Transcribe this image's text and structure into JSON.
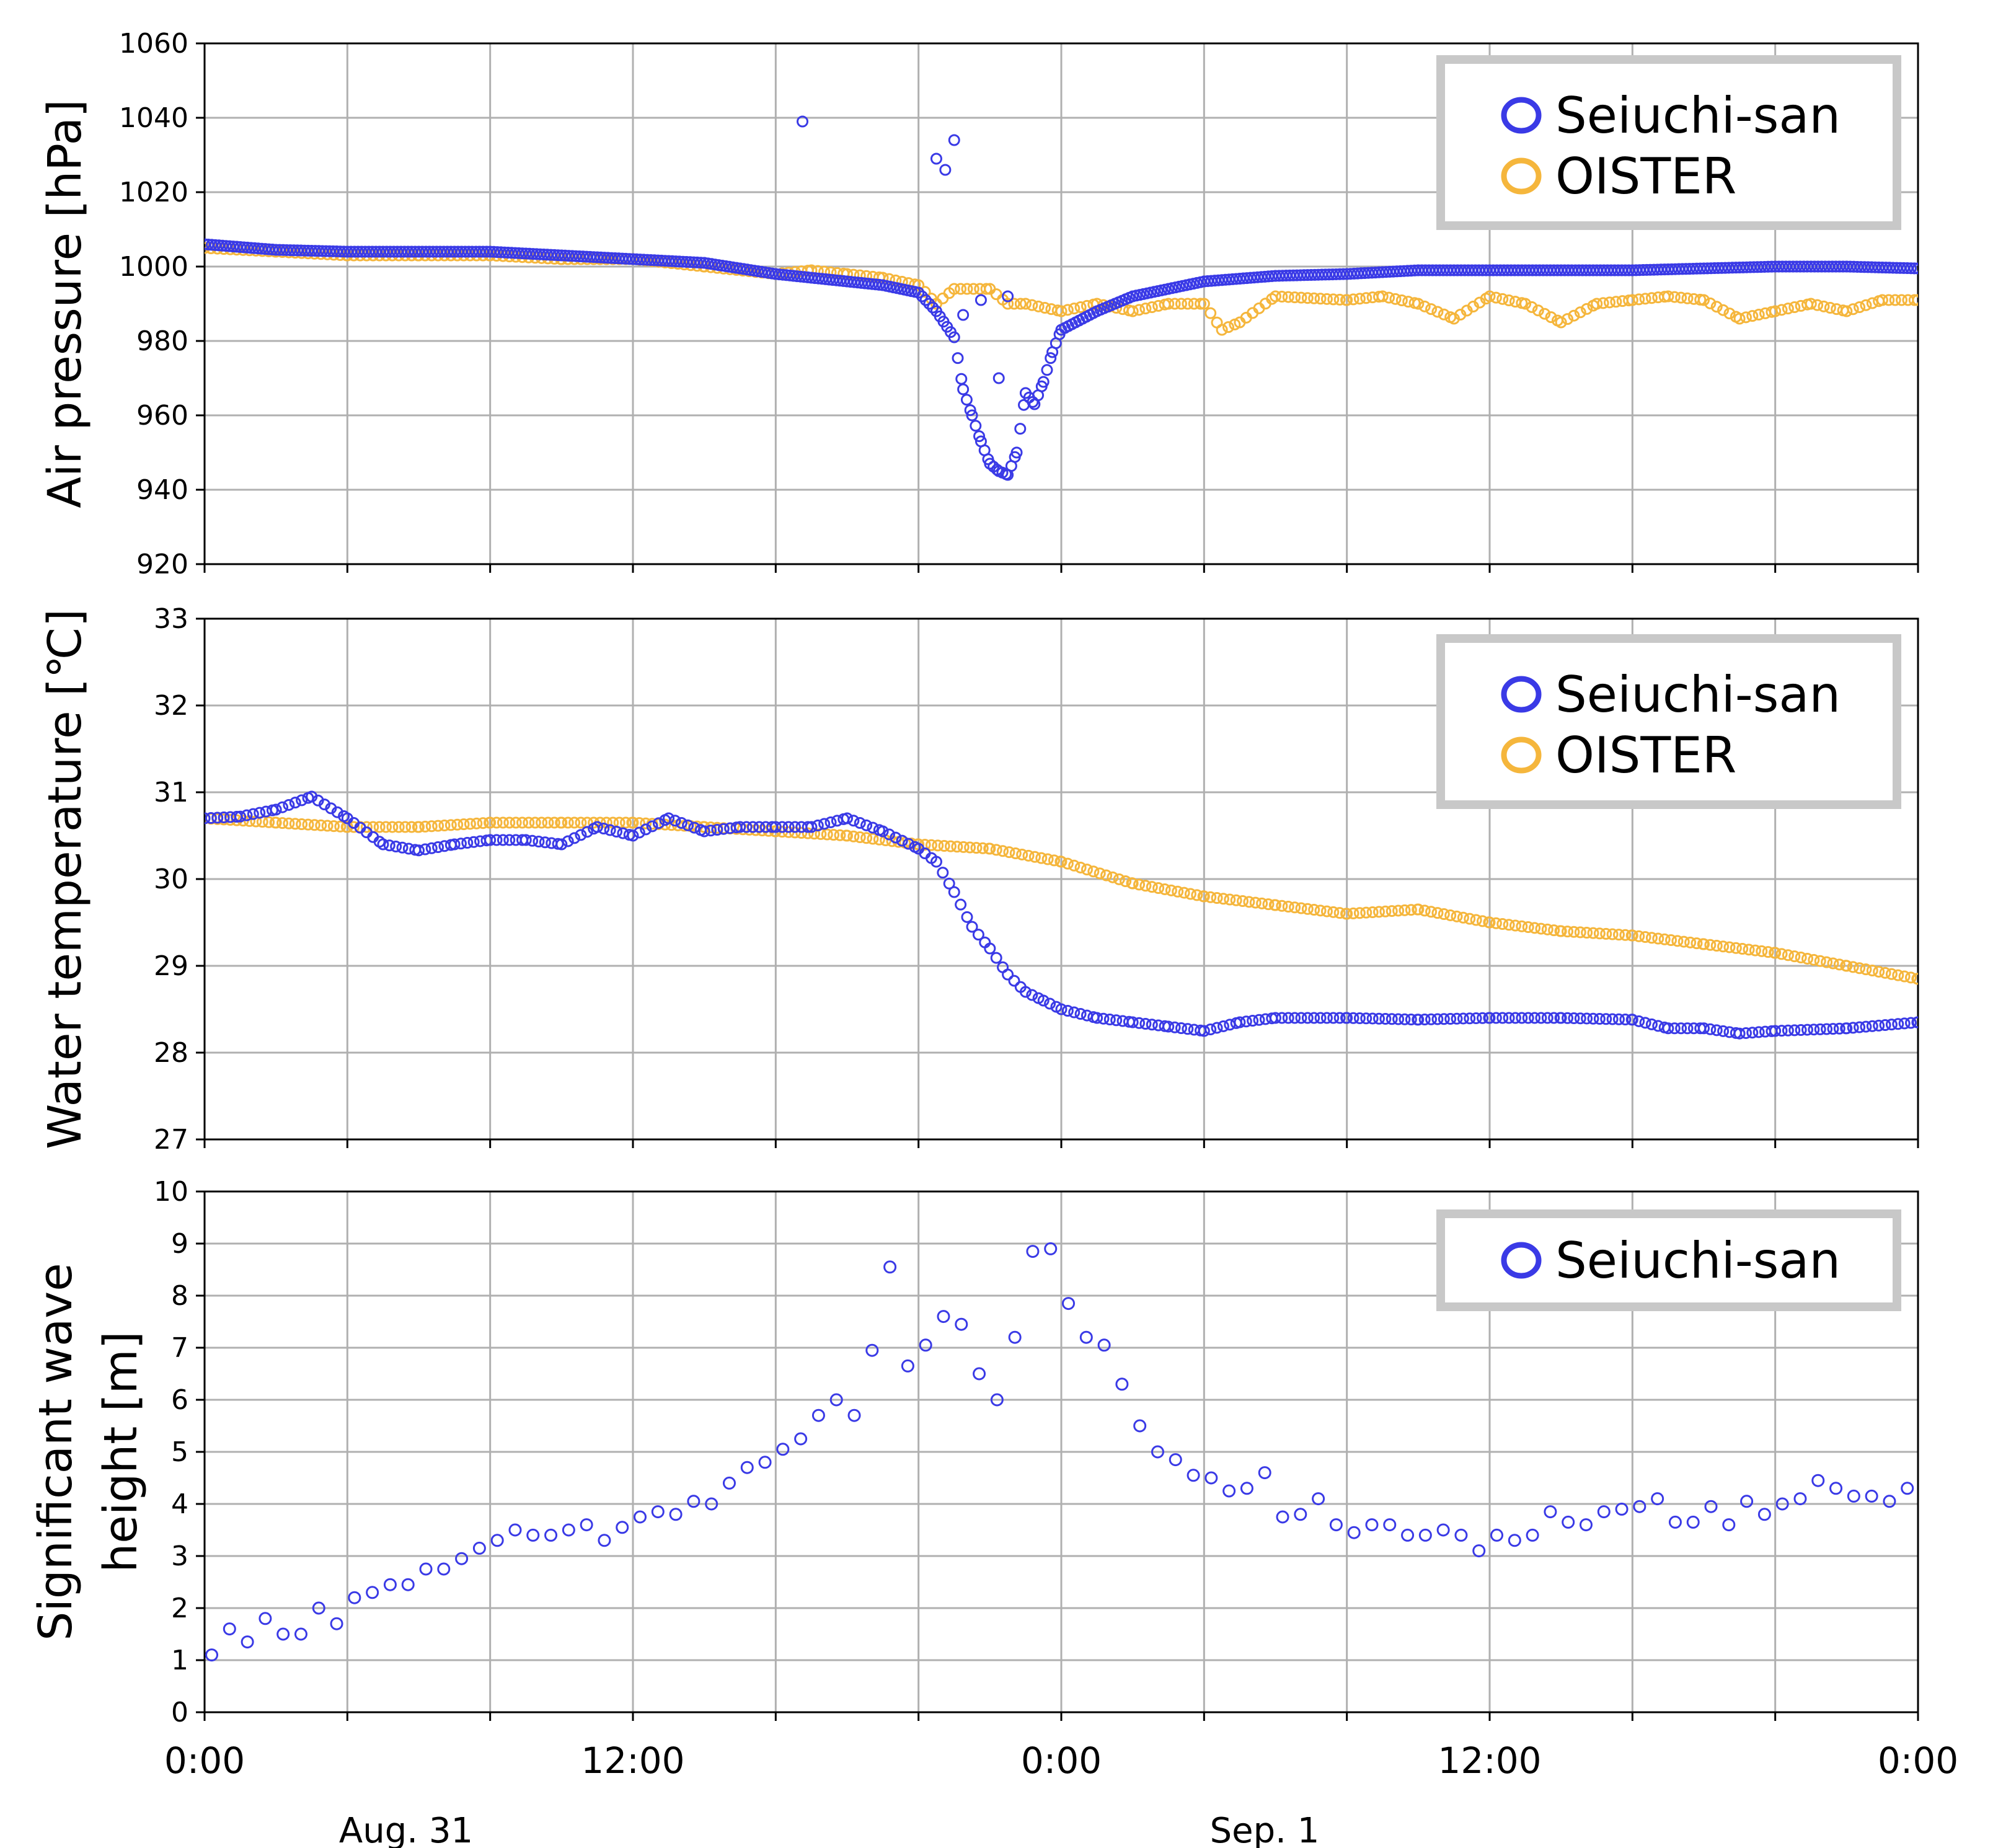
{
  "colors": {
    "seiuchi": "#3a3ae6",
    "oister": "#f5b63c",
    "grid": "#b0b0b0",
    "legend_border": "#c8c8c8"
  },
  "x_axis": {
    "tick_labels": [
      "0:00",
      "12:00",
      "0:00",
      "12:00",
      "0:00"
    ],
    "date_labels": [
      "Aug. 31",
      "Sep. 1"
    ]
  },
  "chart_data": [
    {
      "type": "scatter",
      "ylabel": "Air pressure [hPa]",
      "ylim": [
        920,
        1060
      ],
      "yticks": [
        920,
        940,
        960,
        980,
        1000,
        1020,
        1040,
        1060
      ],
      "xlim": [
        "2018-08-31T00:00",
        "2018-09-02T00:00"
      ],
      "grid": true,
      "legend_position": "top-right",
      "series": [
        {
          "name": "Seiuchi-san",
          "x": [
            "08-31 00:00",
            "08-31 02:00",
            "08-31 04:00",
            "08-31 06:00",
            "08-31 08:00",
            "08-31 10:00",
            "08-31 12:00",
            "08-31 14:00",
            "08-31 16:00",
            "08-31 17:00",
            "08-31 18:00",
            "08-31 19:00",
            "08-31 20:00",
            "08-31 20:30",
            "08-31 21:00",
            "08-31 21:15",
            "08-31 21:30",
            "08-31 21:45",
            "08-31 22:00",
            "08-31 22:15",
            "08-31 22:30",
            "08-31 22:45",
            "08-31 23:00",
            "08-31 23:15",
            "08-31 23:30",
            "08-31 23:45",
            "09-01 00:00",
            "09-01 01:00",
            "09-01 02:00",
            "09-01 04:00",
            "09-01 06:00",
            "09-01 08:00",
            "09-01 10:00",
            "09-01 12:00",
            "09-01 14:00",
            "09-01 16:00",
            "09-01 18:00",
            "09-01 20:00",
            "09-01 22:00",
            "09-02 00:00",
            "08-31 16:45",
            "08-31 20:30",
            "08-31 20:45",
            "08-31 21:00",
            "08-31 21:15",
            "08-31 21:45",
            "08-31 22:15",
            "08-31 22:30"
          ],
          "y": [
            1006,
            1004.5,
            1004,
            1004,
            1004,
            1003,
            1002,
            1001,
            998,
            997,
            996,
            995,
            993,
            988,
            981,
            967,
            960,
            953,
            947,
            945,
            944,
            950,
            966,
            963,
            969,
            977,
            983,
            988,
            992,
            996,
            997.5,
            998,
            999,
            999,
            999,
            999,
            999.5,
            1000,
            1000,
            999.5,
            1039,
            1029,
            1026,
            1034,
            987,
            991,
            970,
            992
          ]
        },
        {
          "name": "OISTER",
          "x": [
            "08-31 00:00",
            "08-31 02:00",
            "08-31 04:00",
            "08-31 06:00",
            "08-31 08:00",
            "08-31 10:00",
            "08-31 12:00",
            "08-31 14:00",
            "08-31 16:00",
            "08-31 17:00",
            "08-31 18:00",
            "08-31 19:00",
            "08-31 20:00",
            "08-31 20:30",
            "08-31 21:00",
            "08-31 22:00",
            "08-31 22:30",
            "08-31 23:00",
            "09-01 00:00",
            "09-01 01:00",
            "09-01 02:00",
            "09-01 03:00",
            "09-01 04:00",
            "09-01 04:30",
            "09-01 05:00",
            "09-01 06:00",
            "09-01 08:00",
            "09-01 09:00",
            "09-01 10:00",
            "09-01 11:00",
            "09-01 12:00",
            "09-01 13:00",
            "09-01 14:00",
            "09-01 15:00",
            "09-01 16:00",
            "09-01 17:00",
            "09-01 18:00",
            "09-01 19:00",
            "09-01 20:00",
            "09-01 21:00",
            "09-01 22:00",
            "09-01 23:00",
            "09-02 00:00"
          ],
          "y": [
            1005,
            1004,
            1003,
            1003,
            1003,
            1002,
            1002,
            1000,
            998,
            999,
            998,
            997,
            995,
            990,
            994,
            994,
            990,
            990,
            988,
            990,
            988,
            990,
            990,
            983,
            985,
            992,
            991,
            992,
            990,
            986,
            992,
            990,
            985,
            990,
            991,
            992,
            991,
            986,
            988,
            990,
            988,
            991,
            991
          ]
        }
      ]
    },
    {
      "type": "scatter",
      "ylabel": "Water temperature [℃]",
      "ylim": [
        27,
        33
      ],
      "yticks": [
        27,
        28,
        29,
        30,
        31,
        32,
        33
      ],
      "xlim": [
        "2018-08-31T00:00",
        "2018-09-02T00:00"
      ],
      "grid": true,
      "legend_position": "top-right",
      "series": [
        {
          "name": "Seiuchi-san",
          "x": [
            "08-31 00:00",
            "08-31 01:00",
            "08-31 02:00",
            "08-31 03:00",
            "08-31 04:00",
            "08-31 05:00",
            "08-31 06:00",
            "08-31 07:00",
            "08-31 08:00",
            "08-31 09:00",
            "08-31 10:00",
            "08-31 11:00",
            "08-31 12:00",
            "08-31 13:00",
            "08-31 14:00",
            "08-31 15:00",
            "08-31 16:00",
            "08-31 17:00",
            "08-31 18:00",
            "08-31 19:00",
            "08-31 20:00",
            "08-31 20:30",
            "08-31 21:00",
            "08-31 21:30",
            "08-31 22:00",
            "08-31 22:30",
            "08-31 23:00",
            "08-31 23:30",
            "09-01 00:00",
            "09-01 01:00",
            "09-01 02:00",
            "09-01 03:00",
            "09-01 04:00",
            "09-01 05:00",
            "09-01 06:00",
            "09-01 08:00",
            "09-01 10:00",
            "09-01 12:00",
            "09-01 14:00",
            "09-01 16:00",
            "09-01 17:00",
            "09-01 18:00",
            "09-01 19:00",
            "09-01 20:00",
            "09-01 22:00",
            "09-02 00:00"
          ],
          "y": [
            30.7,
            30.72,
            30.8,
            30.95,
            30.7,
            30.4,
            30.33,
            30.4,
            30.45,
            30.45,
            30.4,
            30.6,
            30.5,
            30.7,
            30.55,
            30.6,
            30.6,
            30.6,
            30.7,
            30.55,
            30.35,
            30.2,
            29.85,
            29.45,
            29.2,
            28.9,
            28.7,
            28.6,
            28.5,
            28.4,
            28.35,
            28.3,
            28.25,
            28.35,
            28.4,
            28.4,
            28.38,
            28.4,
            28.4,
            28.38,
            28.28,
            28.28,
            28.22,
            28.25,
            28.28,
            28.35
          ]
        },
        {
          "name": "OISTER",
          "x": [
            "08-31 00:00",
            "08-31 02:00",
            "08-31 04:00",
            "08-31 06:00",
            "08-31 08:00",
            "08-31 10:00",
            "08-31 12:00",
            "08-31 14:00",
            "08-31 16:00",
            "08-31 18:00",
            "08-31 20:00",
            "08-31 22:00",
            "09-01 00:00",
            "09-01 02:00",
            "09-01 04:00",
            "09-01 06:00",
            "09-01 08:00",
            "09-01 10:00",
            "09-01 12:00",
            "09-01 14:00",
            "09-01 16:00",
            "09-01 18:00",
            "09-01 20:00",
            "09-01 22:00",
            "09-02 00:00"
          ],
          "y": [
            30.7,
            30.65,
            30.6,
            30.6,
            30.65,
            30.65,
            30.65,
            30.6,
            30.55,
            30.5,
            30.4,
            30.35,
            30.2,
            29.95,
            29.8,
            29.7,
            29.6,
            29.65,
            29.5,
            29.4,
            29.35,
            29.25,
            29.15,
            29.0,
            28.85
          ]
        }
      ]
    },
    {
      "type": "scatter",
      "ylabel": "Significant wave height [m]",
      "ylim": [
        0,
        10
      ],
      "yticks": [
        0,
        1,
        2,
        3,
        4,
        5,
        6,
        7,
        8,
        9,
        10
      ],
      "xlim": [
        "2018-08-31T00:00",
        "2018-09-02T00:00"
      ],
      "grid": true,
      "legend_position": "top-right",
      "series": [
        {
          "name": "Seiuchi-san",
          "x_hours": [
            0.2,
            0.7,
            1.2,
            1.7,
            2.2,
            2.7,
            3.2,
            3.7,
            4.2,
            4.7,
            5.2,
            5.7,
            6.2,
            6.7,
            7.2,
            7.7,
            8.2,
            8.7,
            9.2,
            9.7,
            10.2,
            10.7,
            11.2,
            11.7,
            12.2,
            12.7,
            13.2,
            13.7,
            14.2,
            14.7,
            15.2,
            15.7,
            16.2,
            16.7,
            17.2,
            17.7,
            18.2,
            18.7,
            19.2,
            19.7,
            20.2,
            20.7,
            21.2,
            21.7,
            22.2,
            22.7,
            23.2,
            23.7,
            24.2,
            24.7,
            25.2,
            25.7,
            26.2,
            26.7,
            27.2,
            27.7,
            28.2,
            28.7,
            29.2,
            29.7,
            30.2,
            30.7,
            31.2,
            31.7,
            32.2,
            32.7,
            33.2,
            33.7,
            34.2,
            34.7,
            35.2,
            35.7,
            36.2,
            36.7,
            37.2,
            37.7,
            38.2,
            38.7,
            39.2,
            39.7,
            40.2,
            40.7,
            41.2,
            41.7,
            42.2,
            42.7,
            43.2,
            43.7,
            44.2,
            44.7,
            45.2,
            45.7,
            46.2,
            46.7,
            47.2,
            47.7
          ],
          "y": [
            1.1,
            1.6,
            1.35,
            1.8,
            1.5,
            1.5,
            2.0,
            1.7,
            2.2,
            2.3,
            2.45,
            2.45,
            2.75,
            2.75,
            2.95,
            3.15,
            3.3,
            3.5,
            3.4,
            3.4,
            3.5,
            3.6,
            3.3,
            3.55,
            3.75,
            3.85,
            3.8,
            4.05,
            4.0,
            4.4,
            4.7,
            4.8,
            5.05,
            5.25,
            5.7,
            6.0,
            5.7,
            6.95,
            8.55,
            6.65,
            7.05,
            7.6,
            7.45,
            6.5,
            6.0,
            7.2,
            8.85,
            8.9,
            7.85,
            7.2,
            7.05,
            6.3,
            5.5,
            5.0,
            4.85,
            4.55,
            4.5,
            4.25,
            4.3,
            4.6,
            3.75,
            3.8,
            4.1,
            3.6,
            3.45,
            3.6,
            3.6,
            3.4,
            3.4,
            3.5,
            3.4,
            3.1,
            3.4,
            3.3,
            3.4,
            3.85,
            3.65,
            3.6,
            3.85,
            3.9,
            3.95,
            4.1,
            3.65,
            3.65,
            3.95,
            3.6,
            4.05,
            3.8,
            4.0,
            4.1,
            4.45,
            4.3,
            4.15,
            4.15,
            4.05,
            4.3
          ]
        }
      ]
    }
  ]
}
